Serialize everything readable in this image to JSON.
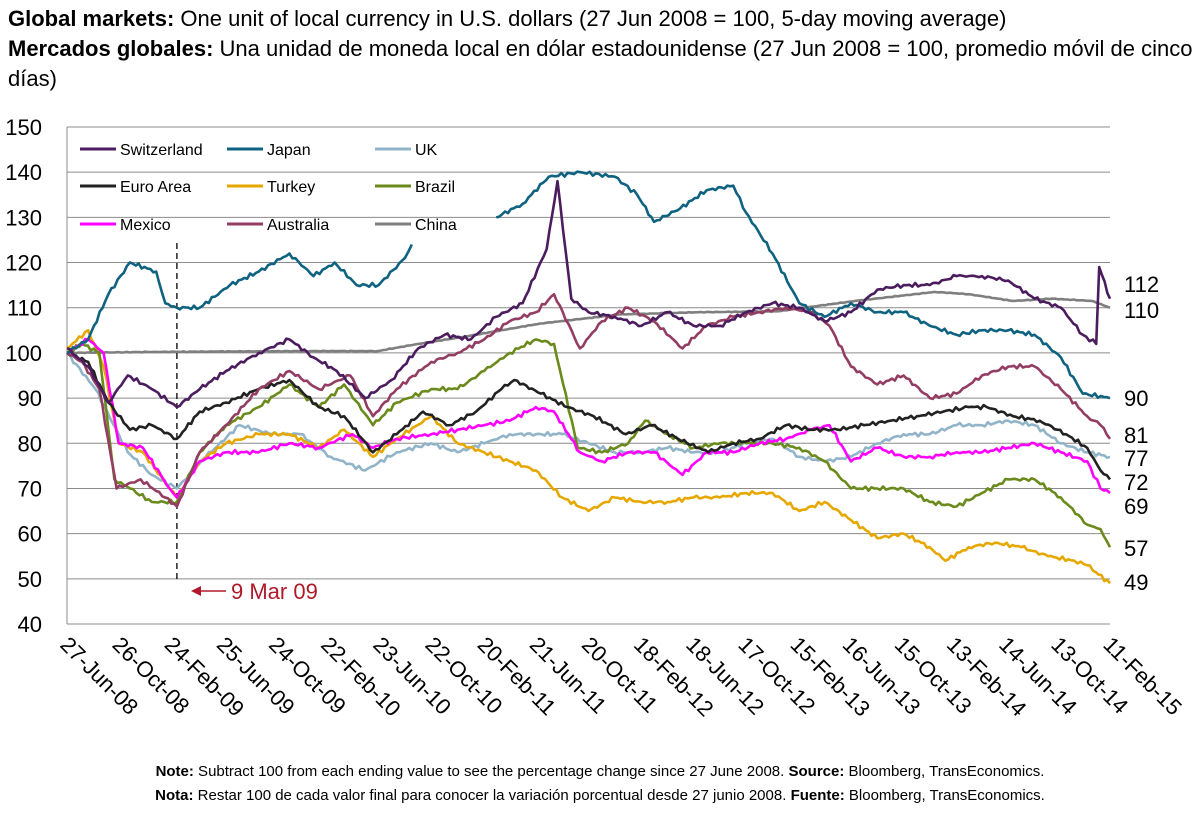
{
  "titles": {
    "en_bold": "Global markets:",
    "en_rest": " One unit of local currency in U.S. dollars (27 Jun 2008 = 100, 5-day moving average)",
    "es_bold": "Mercados globales:",
    "es_rest": " Una unidad de moneda local en dólar estadounidense (27 Jun 2008 = 100, promedio móvil de cinco días)"
  },
  "annotation": {
    "text": "9 Mar 09",
    "x": "2009-03-09",
    "color": "#b0192a"
  },
  "notes": {
    "line1_note_label": "Note:",
    "line1_note_text": " Subtract 100 from each ending value to see the percentage change since 27 June 2008. ",
    "line1_source_label": "Source:",
    "line1_source_text": " Bloomberg, TransEconomics.",
    "line2_note_label": "Nota:",
    "line2_note_text": " Restar 100 de cada valor final para conocer la variación porcentual desde 27 junio 2008. ",
    "line2_source_label": "Fuente:",
    "line2_source_text": " Bloomberg, TransEconomics."
  },
  "chart_data": {
    "type": "line",
    "title": "Global markets: One unit of local currency in U.S. dollars (27 Jun 2008 = 100, 5-day moving average)",
    "xlabel": "",
    "ylabel": "",
    "ylim": [
      40,
      150
    ],
    "yticks": [
      40,
      50,
      60,
      70,
      80,
      90,
      100,
      110,
      120,
      130,
      140,
      150
    ],
    "xlim": [
      "2008-06-27",
      "2015-02-11"
    ],
    "xticks": [
      "27-Jun-08",
      "26-Oct-08",
      "24-Feb-09",
      "25-Jun-09",
      "24-Oct-09",
      "22-Feb-10",
      "23-Jun-10",
      "22-Oct-10",
      "20-Feb-11",
      "21-Jun-11",
      "20-Oct-11",
      "18-Feb-12",
      "18-Jun-12",
      "17-Oct-12",
      "15-Feb-13",
      "16-Jun-13",
      "15-Oct-13",
      "13-Feb-14",
      "14-Jun-14",
      "13-Oct-14",
      "11-Feb-15"
    ],
    "grid": "horizontal",
    "legend": "top-left",
    "end_labels": [
      "112",
      "110",
      "90",
      "81",
      "77",
      "72",
      "69",
      "57",
      "49"
    ],
    "series": [
      {
        "name": "Switzerland",
        "color": "#4b1c5e",
        "x": [
          "2008-06-27",
          "2008-08-15",
          "2008-10-01",
          "2008-11-15",
          "2009-01-10",
          "2009-03-09",
          "2009-05-01",
          "2009-07-01",
          "2009-09-15",
          "2009-11-25",
          "2010-01-20",
          "2010-03-15",
          "2010-05-20",
          "2010-07-20",
          "2010-09-20",
          "2010-11-20",
          "2011-01-20",
          "2011-03-20",
          "2011-05-20",
          "2011-07-15",
          "2011-08-09",
          "2011-09-10",
          "2011-10-20",
          "2011-12-20",
          "2012-02-20",
          "2012-04-20",
          "2012-06-20",
          "2012-08-20",
          "2012-10-20",
          "2012-12-20",
          "2013-02-20",
          "2013-04-20",
          "2013-06-20",
          "2013-08-20",
          "2013-10-20",
          "2013-12-20",
          "2014-02-20",
          "2014-04-20",
          "2014-06-20",
          "2014-08-20",
          "2014-10-20",
          "2014-12-10",
          "2015-01-10",
          "2015-01-17",
          "2015-02-11"
        ],
        "y": [
          101,
          97,
          89,
          95,
          92,
          88,
          92,
          96,
          100,
          103,
          99,
          96,
          90,
          94,
          101,
          104,
          103,
          108,
          111,
          123,
          138,
          112,
          109,
          108,
          106,
          109,
          106,
          106,
          109,
          111,
          110,
          107,
          109,
          114,
          115,
          115,
          117,
          117,
          116,
          112,
          110,
          104,
          102,
          119,
          112
        ]
      },
      {
        "name": "Japan",
        "color": "#0f6280",
        "x": [
          "2008-06-27",
          "2008-08-15",
          "2008-10-01",
          "2008-11-20",
          "2009-01-20",
          "2009-02-10",
          "2009-03-09",
          "2009-05-01",
          "2009-07-10",
          "2009-09-15",
          "2009-11-25",
          "2010-01-20",
          "2010-03-10",
          "2010-04-30",
          "2010-06-20",
          "2010-08-20",
          "2010-09-05",
          "2011-01-20",
          "2011-03-20",
          "2011-05-20",
          "2011-07-20",
          "2011-10-01",
          "2011-12-20",
          "2012-02-10",
          "2012-03-20",
          "2012-05-20",
          "2012-07-20",
          "2012-09-20",
          "2012-10-20",
          "2012-12-20",
          "2013-02-20",
          "2013-04-20",
          "2013-06-20",
          "2013-08-20",
          "2013-10-20",
          "2013-12-20",
          "2014-02-20",
          "2014-04-20",
          "2014-06-20",
          "2014-08-20",
          "2014-10-20",
          "2014-12-10",
          "2015-02-11"
        ],
        "y": [
          100,
          103,
          113,
          120,
          118,
          111,
          110,
          110,
          115,
          118,
          122,
          117,
          120,
          115,
          115,
          121,
          124,
          null,
          130,
          133,
          139,
          140,
          139,
          135,
          129,
          132,
          136,
          137,
          131,
          122,
          111,
          108,
          111,
          109,
          109,
          106,
          104,
          105,
          105,
          104,
          99,
          91,
          90
        ]
      },
      {
        "name": "UK",
        "color": "#92b4c8",
        "x": [
          "2008-06-27",
          "2008-09-01",
          "2008-11-15",
          "2009-01-10",
          "2009-03-09",
          "2009-05-15",
          "2009-08-01",
          "2009-10-15",
          "2009-12-20",
          "2010-03-01",
          "2010-05-20",
          "2010-08-01",
          "2010-10-20",
          "2010-12-20",
          "2011-02-20",
          "2011-04-20",
          "2011-06-20",
          "2011-08-20",
          "2011-10-20",
          "2011-12-20",
          "2012-02-20",
          "2012-04-20",
          "2012-06-20",
          "2012-08-20",
          "2012-10-20",
          "2012-12-20",
          "2013-02-20",
          "2013-04-20",
          "2013-06-20",
          "2013-08-20",
          "2013-10-20",
          "2013-12-20",
          "2014-02-20",
          "2014-04-20",
          "2014-06-20",
          "2014-08-20",
          "2014-10-20",
          "2014-12-20",
          "2015-02-11"
        ],
        "y": [
          100,
          92,
          78,
          73,
          70,
          77,
          84,
          82,
          82,
          77,
          74,
          78,
          80,
          78,
          80,
          82,
          82,
          82,
          80,
          78,
          78,
          79,
          78,
          78,
          80,
          81,
          77,
          76,
          77,
          80,
          82,
          82,
          84,
          84,
          85,
          84,
          80,
          78,
          77
        ]
      },
      {
        "name": "Euro Area",
        "color": "#222222",
        "x": [
          "2008-06-27",
          "2008-08-15",
          "2008-10-01",
          "2008-11-20",
          "2009-01-10",
          "2009-03-09",
          "2009-05-01",
          "2009-07-01",
          "2009-09-15",
          "2009-11-25",
          "2010-02-01",
          "2010-04-01",
          "2010-06-07",
          "2010-08-01",
          "2010-10-01",
          "2010-12-01",
          "2011-02-01",
          "2011-04-01",
          "2011-05-01",
          "2011-07-01",
          "2011-09-01",
          "2011-11-01",
          "2012-01-15",
          "2012-03-15",
          "2012-05-15",
          "2012-07-24",
          "2012-09-20",
          "2012-11-20",
          "2013-01-20",
          "2013-03-20",
          "2013-05-20",
          "2013-07-20",
          "2013-09-20",
          "2013-11-20",
          "2014-01-20",
          "2014-03-20",
          "2014-05-01",
          "2014-07-01",
          "2014-09-01",
          "2014-11-01",
          "2014-12-20",
          "2015-01-20",
          "2015-02-11"
        ],
        "y": [
          100,
          98,
          89,
          83,
          84,
          81,
          87,
          89,
          92,
          94,
          88,
          86,
          78,
          82,
          87,
          84,
          87,
          92,
          94,
          91,
          88,
          86,
          82,
          84,
          81,
          78,
          80,
          81,
          84,
          83,
          83,
          84,
          85,
          86,
          87,
          88,
          88,
          86,
          85,
          82,
          79,
          74,
          72
        ]
      },
      {
        "name": "Turkey",
        "color": "#e6a800",
        "x": [
          "2008-06-27",
          "2008-08-15",
          "2008-09-20",
          "2008-10-25",
          "2008-12-20",
          "2009-02-20",
          "2009-03-09",
          "2009-05-01",
          "2009-07-01",
          "2009-09-15",
          "2009-11-25",
          "2010-02-01",
          "2010-04-01",
          "2010-06-07",
          "2010-08-01",
          "2010-10-20",
          "2010-12-20",
          "2011-02-20",
          "2011-04-20",
          "2011-06-20",
          "2011-08-20",
          "2011-10-20",
          "2011-12-20",
          "2012-02-20",
          "2012-04-20",
          "2012-06-20",
          "2012-08-20",
          "2012-10-20",
          "2012-12-20",
          "2013-02-20",
          "2013-04-20",
          "2013-06-20",
          "2013-08-20",
          "2013-10-20",
          "2013-12-20",
          "2014-01-25",
          "2014-03-20",
          "2014-05-20",
          "2014-07-20",
          "2014-09-20",
          "2014-11-20",
          "2014-12-20",
          "2015-02-11"
        ],
        "y": [
          101,
          105,
          97,
          80,
          78,
          70,
          68,
          76,
          80,
          82,
          82,
          79,
          83,
          77,
          81,
          86,
          80,
          78,
          76,
          74,
          68,
          65,
          68,
          67,
          67,
          68,
          68,
          69,
          69,
          65,
          67,
          63,
          59,
          60,
          57,
          54,
          57,
          58,
          57,
          55,
          54,
          53,
          49
        ]
      },
      {
        "name": "Brazil",
        "color": "#6b8a1c",
        "x": [
          "2008-06-27",
          "2008-08-01",
          "2008-09-10",
          "2008-10-15",
          "2008-11-20",
          "2009-01-10",
          "2009-03-09",
          "2009-05-01",
          "2009-07-01",
          "2009-09-15",
          "2009-11-25",
          "2010-02-01",
          "2010-04-01",
          "2010-06-07",
          "2010-08-01",
          "2010-10-20",
          "2010-12-20",
          "2011-02-20",
          "2011-04-20",
          "2011-06-20",
          "2011-08-01",
          "2011-09-25",
          "2011-11-20",
          "2012-01-20",
          "2012-02-28",
          "2012-04-20",
          "2012-06-20",
          "2012-08-20",
          "2012-10-20",
          "2012-12-20",
          "2013-02-20",
          "2013-04-20",
          "2013-06-20",
          "2013-08-20",
          "2013-10-20",
          "2013-12-20",
          "2014-02-20",
          "2014-04-20",
          "2014-06-20",
          "2014-08-20",
          "2014-10-20",
          "2014-12-20",
          "2015-01-20",
          "2015-02-11"
        ],
        "y": [
          100,
          102,
          100,
          72,
          70,
          67,
          67,
          78,
          84,
          88,
          93,
          88,
          93,
          84,
          89,
          92,
          92,
          96,
          100,
          103,
          102,
          79,
          78,
          80,
          85,
          82,
          79,
          80,
          80,
          80,
          79,
          76,
          70,
          70,
          70,
          67,
          66,
          69,
          72,
          72,
          68,
          62,
          61,
          57
        ]
      },
      {
        "name": "Mexico",
        "color": "#ff00ff",
        "x": [
          "2008-06-27",
          "2008-08-15",
          "2008-09-20",
          "2008-10-25",
          "2008-12-20",
          "2009-02-20",
          "2009-03-09",
          "2009-05-01",
          "2009-07-01",
          "2009-09-15",
          "2009-11-25",
          "2010-02-01",
          "2010-04-20",
          "2010-06-07",
          "2010-08-01",
          "2010-10-20",
          "2010-12-20",
          "2011-02-20",
          "2011-04-20",
          "2011-06-20",
          "2011-08-01",
          "2011-09-30",
          "2011-11-20",
          "2012-01-20",
          "2012-03-20",
          "2012-05-25",
          "2012-07-20",
          "2012-09-20",
          "2012-11-20",
          "2013-01-20",
          "2013-03-20",
          "2013-05-01",
          "2013-06-20",
          "2013-08-20",
          "2013-10-20",
          "2013-12-20",
          "2014-02-20",
          "2014-04-20",
          "2014-06-20",
          "2014-08-20",
          "2014-10-20",
          "2014-12-20",
          "2015-01-20",
          "2015-02-11"
        ],
        "y": [
          100,
          103,
          100,
          80,
          79,
          70,
          68,
          76,
          78,
          78,
          80,
          79,
          82,
          79,
          81,
          82,
          83,
          84,
          85,
          88,
          87,
          78,
          76,
          78,
          78,
          73,
          78,
          78,
          80,
          81,
          83,
          84,
          76,
          79,
          77,
          77,
          78,
          78,
          79,
          80,
          78,
          76,
          70,
          69
        ]
      },
      {
        "name": "Australia",
        "color": "#933d62",
        "x": [
          "2008-06-27",
          "2008-08-01",
          "2008-09-10",
          "2008-10-20",
          "2008-12-15",
          "2009-02-10",
          "2009-03-09",
          "2009-05-01",
          "2009-07-01",
          "2009-09-15",
          "2009-11-25",
          "2010-02-01",
          "2010-04-15",
          "2010-06-07",
          "2010-08-01",
          "2010-10-20",
          "2010-12-20",
          "2011-02-20",
          "2011-04-20",
          "2011-06-20",
          "2011-08-01",
          "2011-09-30",
          "2011-11-20",
          "2012-01-20",
          "2012-03-20",
          "2012-05-25",
          "2012-07-20",
          "2012-09-20",
          "2012-11-20",
          "2013-01-20",
          "2013-03-20",
          "2013-05-01",
          "2013-06-20",
          "2013-08-20",
          "2013-10-20",
          "2013-12-20",
          "2014-02-20",
          "2014-04-20",
          "2014-06-20",
          "2014-08-20",
          "2014-10-20",
          "2014-12-20",
          "2015-01-20",
          "2015-02-11"
        ],
        "y": [
          100,
          98,
          92,
          70,
          72,
          68,
          66,
          78,
          84,
          92,
          96,
          92,
          95,
          86,
          92,
          98,
          100,
          103,
          107,
          109,
          113,
          101,
          107,
          110,
          107,
          101,
          106,
          108,
          109,
          110,
          109,
          106,
          97,
          93,
          95,
          90,
          91,
          95,
          97,
          97,
          92,
          86,
          84,
          81
        ]
      },
      {
        "name": "China",
        "color": "#7f7f7f",
        "x": [
          "2008-06-27",
          "2009-01-01",
          "2009-06-01",
          "2010-01-01",
          "2010-06-18",
          "2010-09-20",
          "2010-12-31",
          "2011-06-30",
          "2011-12-31",
          "2012-06-30",
          "2012-12-31",
          "2013-06-30",
          "2013-12-31",
          "2014-03-20",
          "2014-06-30",
          "2014-09-30",
          "2014-12-31",
          "2015-02-11"
        ],
        "y": [
          100,
          100.2,
          100.3,
          100.4,
          100.4,
          102,
          103.5,
          106.5,
          108.5,
          109,
          109.2,
          111.5,
          113.5,
          113,
          111.5,
          112,
          111.5,
          110
        ]
      }
    ]
  },
  "legend_layout_order": [
    "Switzerland",
    "Japan",
    "UK",
    "Euro Area",
    "Turkey",
    "Brazil",
    "Mexico",
    "Australia",
    "China"
  ]
}
